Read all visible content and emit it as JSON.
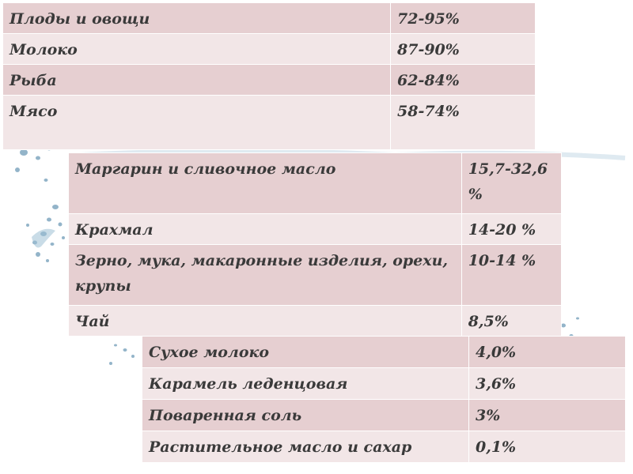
{
  "tables": [
    {
      "rows": [
        {
          "label": "Плоды и овощи",
          "value": "72-95%"
        },
        {
          "label": "Молоко",
          "value": "87-90%"
        },
        {
          "label": "Рыба",
          "value": "62-84%"
        },
        {
          "label": "Мясо",
          "value": "58-74%"
        }
      ]
    },
    {
      "rows": [
        {
          "label": "Маргарин и сливочное масло",
          "value": "15,7-32,6 %"
        },
        {
          "label": "Крахмал",
          "value": "14-20 %"
        },
        {
          "label": "Зерно, мука, макаронные изделия, орехи, крупы",
          "value": "10-14 %"
        },
        {
          "label": "Чай",
          "value": "8,5%"
        }
      ]
    },
    {
      "rows": [
        {
          "label": "Сухое молоко",
          "value": "4,0%"
        },
        {
          "label": "Карамель леденцовая",
          "value": "3,6%"
        },
        {
          "label": "Поваренная соль",
          "value": "3%"
        },
        {
          "label": "Растительное масло и сахар",
          "value": "0,1%"
        }
      ]
    }
  ],
  "colors": {
    "row_dark": "#e6cfd1",
    "row_light": "#f2e6e7",
    "text": "#3a3a3a"
  }
}
